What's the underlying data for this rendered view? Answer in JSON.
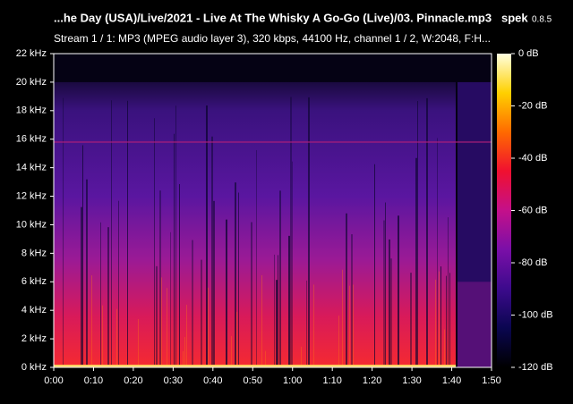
{
  "chart_data": {
    "type": "spectrogram",
    "title": "...he Day (USA)/Live/2021 - Live At The Whisky A Go-Go (Live)/03. Pinnacle.mp3",
    "app_name": "spek",
    "app_version": "0.8.5",
    "subtitle": "Stream 1 / 1: MP3 (MPEG audio layer 3), 320 kbps, 44100 Hz, channel 1 / 2, W:2048, F:H...",
    "xlim": [
      0,
      110
    ],
    "xticks": [
      {
        "value": 0,
        "label": "0:00"
      },
      {
        "value": 10,
        "label": "0:10"
      },
      {
        "value": 20,
        "label": "0:20"
      },
      {
        "value": 30,
        "label": "0:30"
      },
      {
        "value": 40,
        "label": "0:40"
      },
      {
        "value": 50,
        "label": "0:50"
      },
      {
        "value": 60,
        "label": "1:00"
      },
      {
        "value": 70,
        "label": "1:10"
      },
      {
        "value": 80,
        "label": "1:20"
      },
      {
        "value": 90,
        "label": "1:30"
      },
      {
        "value": 100,
        "label": "1:40"
      },
      {
        "value": 110,
        "label": "1:50"
      }
    ],
    "ylim": [
      0,
      22
    ],
    "yticks": [
      {
        "value": 0,
        "label": "0 kHz"
      },
      {
        "value": 2,
        "label": "2 kHz"
      },
      {
        "value": 4,
        "label": "4 kHz"
      },
      {
        "value": 6,
        "label": "6 kHz"
      },
      {
        "value": 8,
        "label": "8 kHz"
      },
      {
        "value": 10,
        "label": "10 kHz"
      },
      {
        "value": 12,
        "label": "12 kHz"
      },
      {
        "value": 14,
        "label": "14 kHz"
      },
      {
        "value": 16,
        "label": "16 kHz"
      },
      {
        "value": 18,
        "label": "18 kHz"
      },
      {
        "value": 20,
        "label": "20 kHz"
      },
      {
        "value": 22,
        "label": "22 kHz"
      }
    ],
    "zlim": [
      -120,
      0
    ],
    "zticks": [
      {
        "value": 0,
        "label": "0 dB"
      },
      {
        "value": -20,
        "label": "-20 dB"
      },
      {
        "value": -40,
        "label": "-40 dB"
      },
      {
        "value": -60,
        "label": "-60 dB"
      },
      {
        "value": -80,
        "label": "-80 dB"
      },
      {
        "value": -100,
        "label": "-100 dB"
      },
      {
        "value": -120,
        "label": "-120 dB"
      }
    ],
    "colormap": [
      "#000000",
      "#0a0650",
      "#3c0a8c",
      "#7a0fa8",
      "#c4108a",
      "#f01030",
      "#ff6a00",
      "#ffd000",
      "#ffffe0"
    ]
  }
}
